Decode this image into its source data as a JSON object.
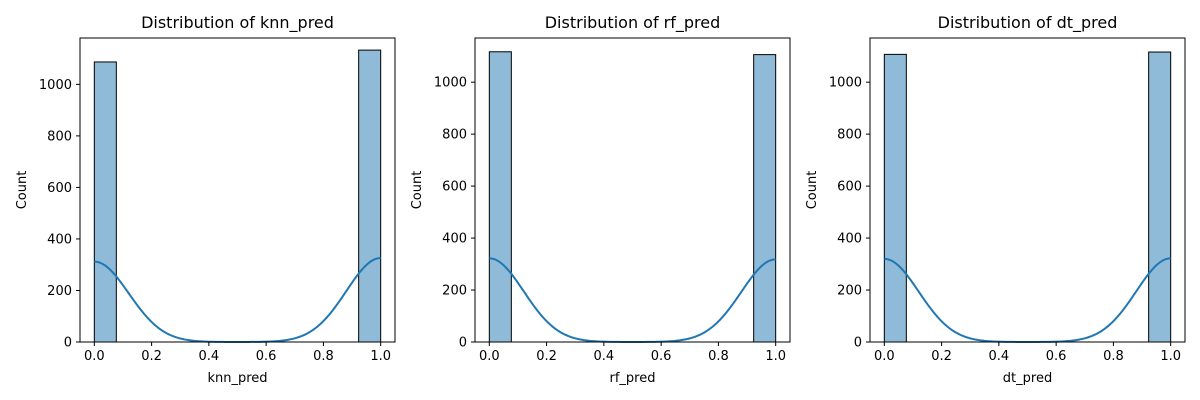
{
  "colors": {
    "bar_fill": "#8fbbd9",
    "bar_edge": "#000000",
    "kde_line": "#1f77b4",
    "axes": "#000000",
    "background": "#ffffff"
  },
  "chart_data": [
    {
      "type": "bar",
      "title": "Distribution of knn_pred",
      "xlabel": "knn_pred",
      "ylabel": "Count",
      "xlim": [
        -0.05,
        1.05
      ],
      "ylim": [
        0,
        1180
      ],
      "xticks": [
        0.0,
        0.2,
        0.4,
        0.6,
        0.8,
        1.0
      ],
      "xtick_labels": [
        "0.0",
        "0.2",
        "0.4",
        "0.6",
        "0.8",
        "1.0"
      ],
      "yticks": [
        0,
        200,
        400,
        600,
        800,
        1000
      ],
      "ytick_labels": [
        "0",
        "200",
        "400",
        "600",
        "800",
        "1000"
      ],
      "bins": [
        {
          "start": 0.0,
          "end": 0.0769,
          "count": 1087
        },
        {
          "start": 0.9231,
          "end": 1.0,
          "count": 1133
        }
      ],
      "kde": {
        "peak0": 312,
        "peak1": 326,
        "bandwidth": 0.12
      },
      "grid": false,
      "legend": "none"
    },
    {
      "type": "bar",
      "title": "Distribution of rf_pred",
      "xlabel": "rf_pred",
      "ylabel": "Count",
      "xlim": [
        -0.05,
        1.05
      ],
      "ylim": [
        0,
        1170
      ],
      "xticks": [
        0.0,
        0.2,
        0.4,
        0.6,
        0.8,
        1.0
      ],
      "xtick_labels": [
        "0.0",
        "0.2",
        "0.4",
        "0.6",
        "0.8",
        "1.0"
      ],
      "yticks": [
        0,
        200,
        400,
        600,
        800,
        1000
      ],
      "ytick_labels": [
        "0",
        "200",
        "400",
        "600",
        "800",
        "1000"
      ],
      "bins": [
        {
          "start": 0.0,
          "end": 0.0769,
          "count": 1117
        },
        {
          "start": 0.9231,
          "end": 1.0,
          "count": 1106
        }
      ],
      "kde": {
        "peak0": 322,
        "peak1": 318,
        "bandwidth": 0.12
      },
      "grid": false,
      "legend": "none"
    },
    {
      "type": "bar",
      "title": "Distribution of dt_pred",
      "xlabel": "dt_pred",
      "ylabel": "Count",
      "xlim": [
        -0.05,
        1.05
      ],
      "ylim": [
        0,
        1170
      ],
      "xticks": [
        0.0,
        0.2,
        0.4,
        0.6,
        0.8,
        1.0
      ],
      "xtick_labels": [
        "0.0",
        "0.2",
        "0.4",
        "0.6",
        "0.8",
        "1.0"
      ],
      "yticks": [
        0,
        200,
        400,
        600,
        800,
        1000
      ],
      "ytick_labels": [
        "0",
        "200",
        "400",
        "600",
        "800",
        "1000"
      ],
      "bins": [
        {
          "start": 0.0,
          "end": 0.0769,
          "count": 1107
        },
        {
          "start": 0.9231,
          "end": 1.0,
          "count": 1116
        }
      ],
      "kde": {
        "peak0": 320,
        "peak1": 322,
        "bandwidth": 0.12
      },
      "grid": false,
      "legend": "none"
    }
  ]
}
